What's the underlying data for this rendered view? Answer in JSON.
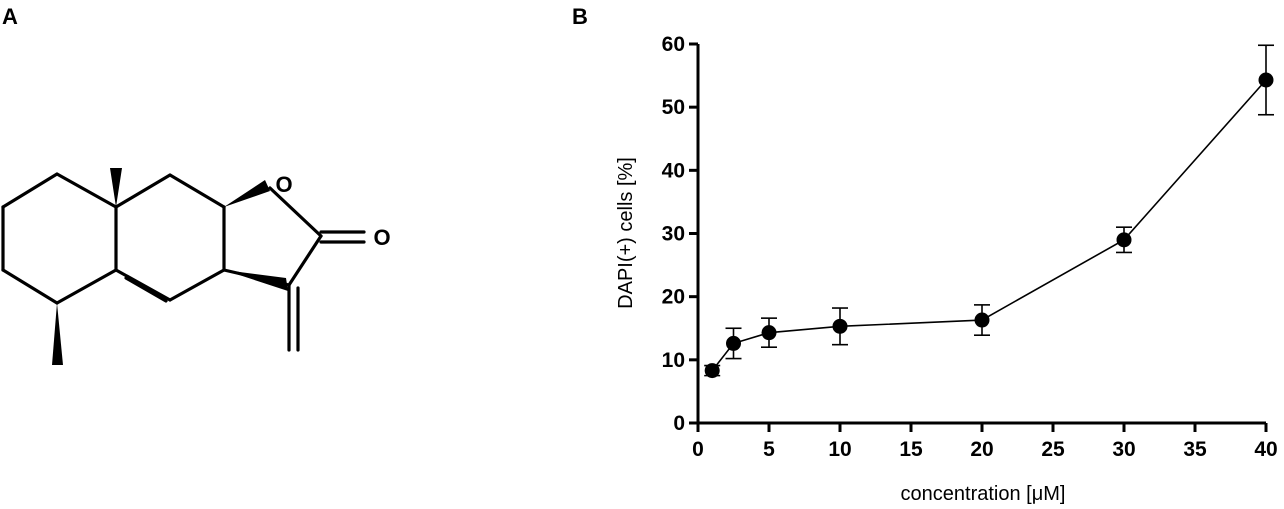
{
  "panels": {
    "a_label": "A",
    "b_label": "B"
  },
  "molecule": {
    "atoms": {
      "ring_oxygen": "O",
      "carbonyl_oxygen": "O"
    }
  },
  "chart_data": {
    "type": "scatter",
    "title": "",
    "xlabel": "concentration [μM]",
    "ylabel": "DAPI(+) cells [%]",
    "xlim": [
      0,
      40
    ],
    "ylim": [
      0,
      60
    ],
    "xticks": [
      0,
      5,
      10,
      15,
      20,
      25,
      30,
      35,
      40
    ],
    "yticks": [
      0,
      10,
      20,
      30,
      40,
      50,
      60
    ],
    "grid": false,
    "connected": true,
    "color": "#000000",
    "series": [
      {
        "x": [
          1,
          2.5,
          5,
          10,
          20,
          30,
          40
        ],
        "y": [
          8.3,
          12.6,
          14.3,
          15.3,
          16.3,
          29.0,
          54.3
        ],
        "error": [
          0.8,
          2.4,
          2.3,
          2.9,
          2.4,
          2.0,
          5.5
        ]
      }
    ]
  }
}
